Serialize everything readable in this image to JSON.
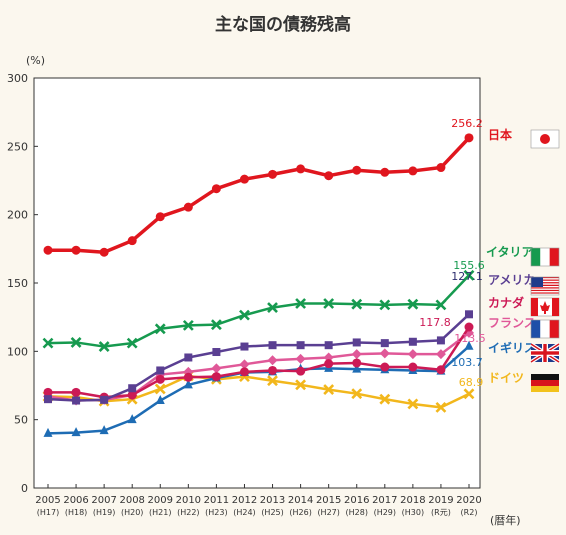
{
  "chart_data": {
    "type": "line",
    "title": "主な国の債務残高",
    "ylabel": "(%)",
    "xlabel": "(暦年)",
    "ylim": [
      0,
      300
    ],
    "yticks": [
      0,
      50,
      100,
      150,
      200,
      250,
      300
    ],
    "categories": [
      "2005",
      "2006",
      "2007",
      "2008",
      "2009",
      "2010",
      "2011",
      "2012",
      "2013",
      "2014",
      "2015",
      "2016",
      "2017",
      "2018",
      "2019",
      "2020"
    ],
    "categories_sub": [
      "(H17)",
      "(H18)",
      "(H19)",
      "(H20)",
      "(H21)",
      "(H22)",
      "(H23)",
      "(H24)",
      "(H25)",
      "(H26)",
      "(H27)",
      "(H28)",
      "(H29)",
      "(H30)",
      "(R元)",
      "(R2)"
    ],
    "grid": false,
    "legend": "right, at line ends",
    "series": [
      {
        "name": "日本",
        "color": "#e0161e",
        "marker": "circle",
        "flag": "japan-flag",
        "values": [
          174,
          174,
          172.5,
          181,
          198.5,
          205.5,
          219,
          226,
          229.5,
          233.5,
          228.5,
          232.5,
          231,
          232,
          234.5,
          256.2
        ],
        "end_label": "256.2"
      },
      {
        "name": "イタリア",
        "color": "#169a4f",
        "marker": "x",
        "flag": "italy-flag",
        "values": [
          106,
          106.5,
          103.5,
          106,
          116.5,
          119,
          119.5,
          126.5,
          132,
          135,
          135,
          134.5,
          134,
          134.5,
          134,
          155.6
        ],
        "end_label": "155.6"
      },
      {
        "name": "アメリカ",
        "color": "#5a3f92",
        "marker": "square",
        "flag": "usa-flag",
        "values": [
          65,
          64,
          64.5,
          73,
          86,
          95.5,
          99.5,
          103.5,
          104.5,
          104.5,
          104.5,
          106.5,
          106,
          107,
          108,
          127.1
        ],
        "end_label": "127.1"
      },
      {
        "name": "カナダ",
        "color": "#cc1a55",
        "marker": "circle",
        "flag": "canada-flag",
        "values": [
          70,
          70,
          66.5,
          68,
          79.5,
          81,
          81.5,
          85,
          86,
          85.5,
          91,
          91.5,
          88.5,
          88.5,
          86.5,
          117.8
        ],
        "end_label": "117.8"
      },
      {
        "name": "フランス",
        "color": "#e05898",
        "marker": "diamond",
        "flag": "france-flag",
        "values": [
          67,
          64,
          64.5,
          68,
          83,
          85,
          87.5,
          90.5,
          93.5,
          94.5,
          95.5,
          98,
          98.5,
          98,
          98,
          113.5
        ],
        "end_label": "113.5"
      },
      {
        "name": "イギリス",
        "color": "#1e6cb4",
        "marker": "triangle",
        "flag": "uk-flag",
        "values": [
          40,
          40.5,
          42,
          50,
          64,
          75.5,
          80.5,
          84.5,
          85,
          87,
          87.5,
          87,
          86.5,
          86,
          85.5,
          103.7
        ],
        "end_label": "103.7"
      },
      {
        "name": "ドイツ",
        "color": "#f2b71c",
        "marker": "x",
        "flag": "germany-flag",
        "values": [
          67,
          66.5,
          63.5,
          65,
          72.5,
          82,
          79.5,
          81.5,
          78.5,
          75.5,
          72,
          69,
          65,
          61.5,
          59,
          68.9
        ],
        "end_label": "68.9"
      }
    ]
  }
}
